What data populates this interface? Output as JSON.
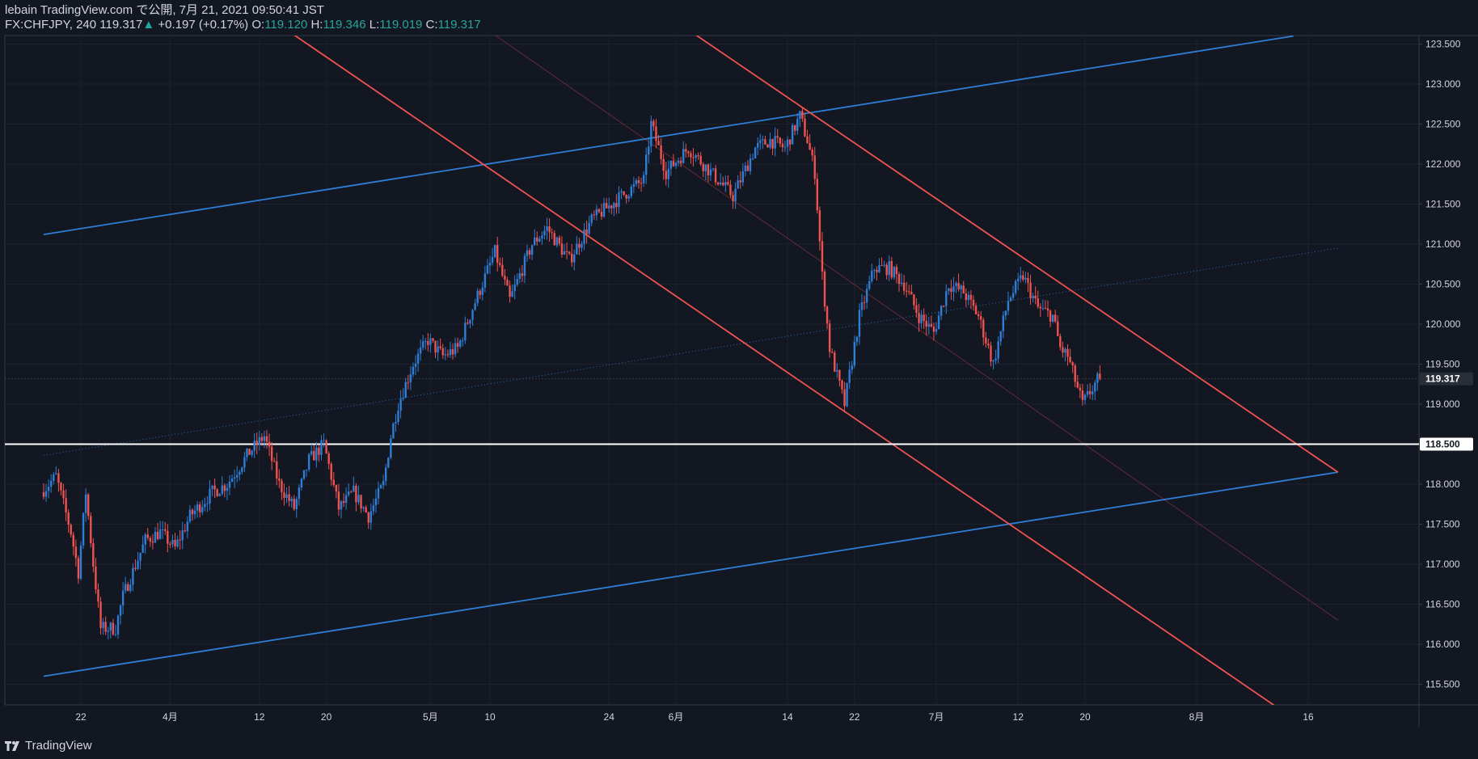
{
  "header": {
    "line1": "lebain TradingView.com で公開, 7月 21, 2021 09:50:41 JST",
    "symbol": "FX:CHFJPY, 240",
    "last": "119.317",
    "up_arrow": "▲",
    "change": "+0.197 (+0.17%)",
    "o_label": "O:",
    "o_value": "119.120",
    "h_label": "H:",
    "h_value": "119.346",
    "l_label": "L:",
    "l_value": "119.019",
    "c_label": "C:",
    "c_value": "119.317"
  },
  "footer": {
    "brand": "TradingView",
    "brand_icon": "tradingview-logo-icon"
  },
  "colors": {
    "background": "#131722",
    "grid": "#1e222d",
    "up": "#2e7ed6",
    "down": "#ef5350",
    "channel_blue": "#2e7ed6",
    "channel_red": "#ef5350",
    "level": "#ffffff",
    "text": "#d1d4dc"
  },
  "chart_data": {
    "type": "candlestick",
    "symbol": "FX:CHFJPY",
    "interval": "240",
    "ylim": [
      115.2,
      123.7
    ],
    "y_ticks": [
      "115.500",
      "116.000",
      "116.500",
      "117.000",
      "117.500",
      "118.000",
      "118.500",
      "119.000",
      "119.500",
      "120.000",
      "120.500",
      "121.000",
      "121.500",
      "122.000",
      "122.500",
      "123.000",
      "123.500"
    ],
    "x_range": [
      0,
      180
    ],
    "x_ticks": [
      {
        "x": 5,
        "label": "22"
      },
      {
        "x": 17,
        "label": "4月"
      },
      {
        "x": 29,
        "label": "12"
      },
      {
        "x": 38,
        "label": "20"
      },
      {
        "x": 52,
        "label": "5月"
      },
      {
        "x": 60,
        "label": "10"
      },
      {
        "x": 76,
        "label": "24"
      },
      {
        "x": 85,
        "label": "6月"
      },
      {
        "x": 100,
        "label": "14"
      },
      {
        "x": 109,
        "label": "22"
      },
      {
        "x": 120,
        "label": "7月"
      },
      {
        "x": 131,
        "label": "12"
      },
      {
        "x": 140,
        "label": "20"
      },
      {
        "x": 155,
        "label": "8月"
      },
      {
        "x": 170,
        "label": "16"
      }
    ],
    "price_path": [
      [
        0,
        117.9
      ],
      [
        2,
        118.1
      ],
      [
        4,
        117.4
      ],
      [
        5,
        116.9
      ],
      [
        6,
        117.9
      ],
      [
        7,
        117.0
      ],
      [
        8,
        116.2
      ],
      [
        10,
        116.2
      ],
      [
        11,
        116.6
      ],
      [
        14,
        117.3
      ],
      [
        16,
        117.4
      ],
      [
        18,
        117.2
      ],
      [
        20,
        117.6
      ],
      [
        23,
        117.9
      ],
      [
        25,
        118.0
      ],
      [
        28,
        118.4
      ],
      [
        30,
        118.6
      ],
      [
        32,
        118.0
      ],
      [
        34,
        117.7
      ],
      [
        36,
        118.3
      ],
      [
        38,
        118.5
      ],
      [
        40,
        117.7
      ],
      [
        42,
        117.9
      ],
      [
        44,
        117.6
      ],
      [
        46,
        118.0
      ],
      [
        47,
        118.6
      ],
      [
        48,
        119.0
      ],
      [
        50,
        119.5
      ],
      [
        52,
        119.8
      ],
      [
        54,
        119.6
      ],
      [
        56,
        119.7
      ],
      [
        58,
        120.2
      ],
      [
        61,
        120.9
      ],
      [
        63,
        120.3
      ],
      [
        66,
        121.0
      ],
      [
        68,
        121.2
      ],
      [
        71,
        120.8
      ],
      [
        74,
        121.3
      ],
      [
        78,
        121.6
      ],
      [
        81,
        121.8
      ],
      [
        82,
        122.5
      ],
      [
        84,
        121.9
      ],
      [
        87,
        122.2
      ],
      [
        90,
        121.9
      ],
      [
        93,
        121.6
      ],
      [
        96,
        122.2
      ],
      [
        98,
        122.3
      ],
      [
        100,
        122.2
      ],
      [
        102,
        122.6
      ],
      [
        103,
        122.3
      ],
      [
        104,
        121.9
      ],
      [
        105,
        120.6
      ],
      [
        106,
        119.7
      ],
      [
        108,
        119.0
      ],
      [
        110,
        120.1
      ],
      [
        112,
        120.7
      ],
      [
        114,
        120.7
      ],
      [
        116,
        120.5
      ],
      [
        118,
        120.1
      ],
      [
        120,
        119.9
      ],
      [
        122,
        120.5
      ],
      [
        124,
        120.4
      ],
      [
        126,
        120.1
      ],
      [
        128,
        119.5
      ],
      [
        130,
        120.3
      ],
      [
        132,
        120.6
      ],
      [
        134,
        120.2
      ],
      [
        136,
        120.1
      ],
      [
        137,
        119.7
      ],
      [
        138,
        119.6
      ],
      [
        140,
        119.0
      ],
      [
        142,
        119.3
      ]
    ],
    "horizontal_level": {
      "price": 118.5,
      "label": "118.500"
    },
    "last_price": {
      "price": 119.317,
      "label": "119.317"
    },
    "trendlines": [
      {
        "name": "blue-channel-upper",
        "color": "#2e7ed6",
        "style": "solid",
        "x1": 0,
        "y1": 121.12,
        "x2": 168,
        "y2": 123.6
      },
      {
        "name": "blue-channel-lower",
        "color": "#2e7ed6",
        "style": "solid",
        "x1": 0,
        "y1": 115.6,
        "x2": 174,
        "y2": 118.15
      },
      {
        "name": "blue-channel-mid",
        "color": "#2e7ed6",
        "style": "dotted",
        "x1": 0,
        "y1": 118.36,
        "x2": 174,
        "y2": 120.95
      },
      {
        "name": "red-line-upper",
        "color": "#ef5350",
        "style": "solid",
        "x1": 86,
        "y1": 123.72,
        "x2": 174,
        "y2": 118.15
      },
      {
        "name": "red-line-lower",
        "color": "#ef5350",
        "style": "solid",
        "x1": 32,
        "y1": 123.72,
        "x2": 166,
        "y2": 115.2
      },
      {
        "name": "red-channel-mid",
        "color": "#ef5350",
        "style": "faint",
        "x1": 59,
        "y1": 123.72,
        "x2": 174,
        "y2": 116.3
      }
    ]
  }
}
